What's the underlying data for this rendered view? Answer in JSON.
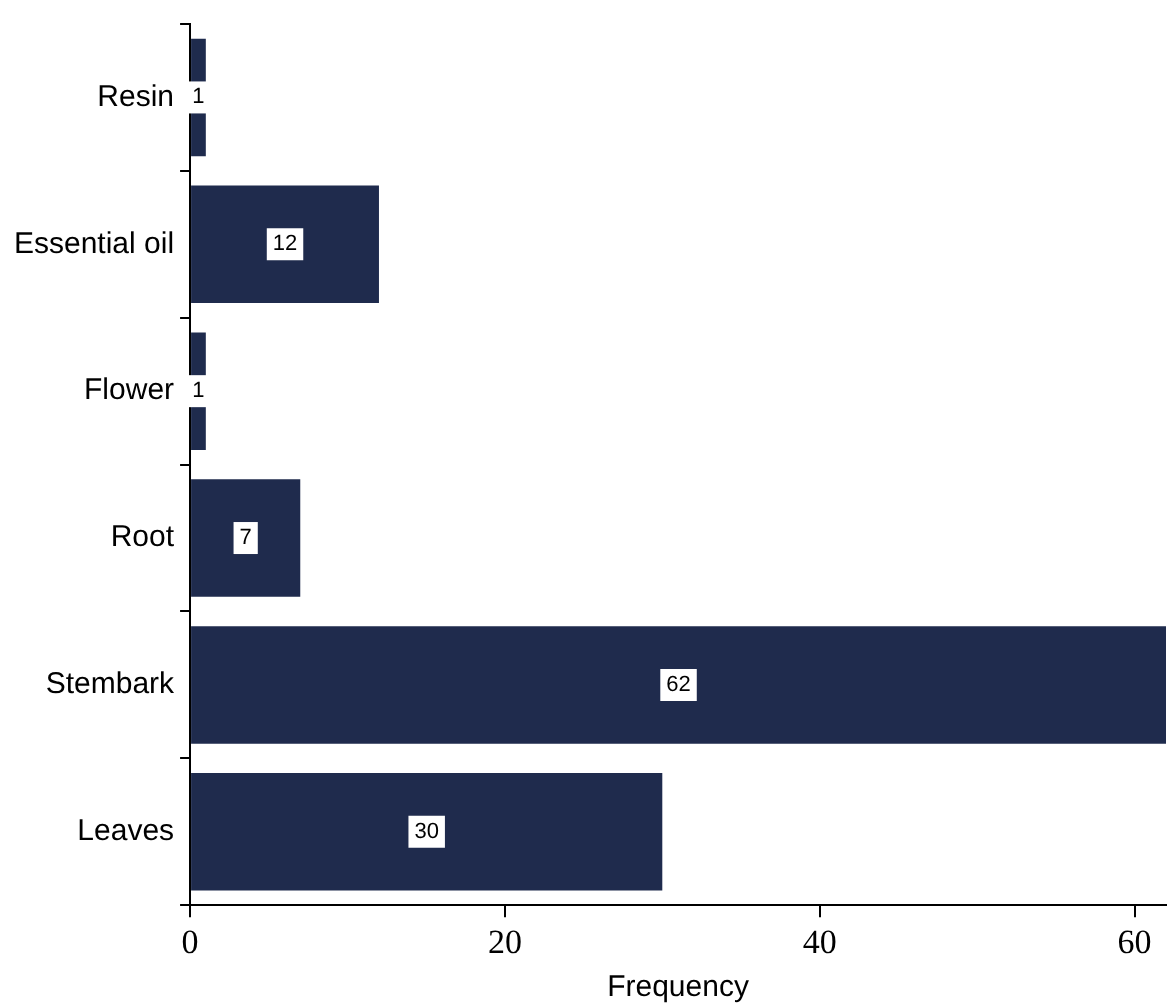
{
  "chart_data": {
    "type": "bar",
    "orientation": "horizontal",
    "xlabel": "Frequency",
    "categories": [
      "Resin",
      "Essential oil",
      "Flower",
      "Root",
      "Stembark",
      "Leaves"
    ],
    "values": [
      1,
      12,
      1,
      7,
      62,
      30
    ],
    "color": "#1f2b4d",
    "xlim": [
      0,
      62
    ],
    "xticks": [
      0,
      20,
      40,
      60
    ],
    "grid": false,
    "legend": false,
    "data_labels": true
  }
}
